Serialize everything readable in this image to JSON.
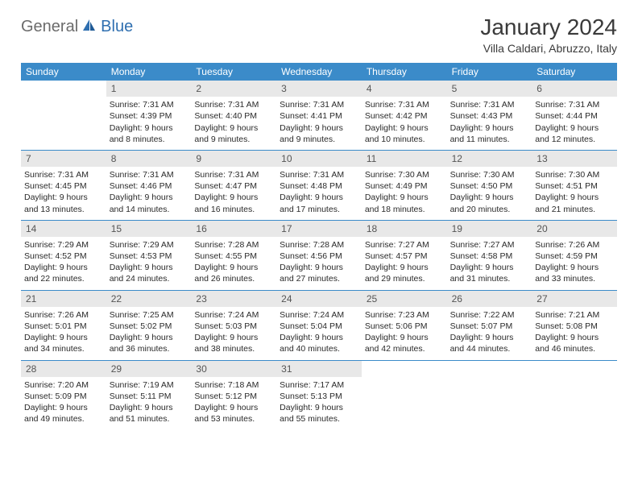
{
  "brand": {
    "part1": "General",
    "part2": "Blue"
  },
  "title": "January 2024",
  "location": "Villa Caldari, Abruzzo, Italy",
  "colors": {
    "header_bg": "#3b8bc9",
    "header_text": "#ffffff",
    "daynum_bg": "#e8e8e8",
    "rule": "#3b8bc9",
    "text": "#2a2a2a",
    "logo_gray": "#6b6b6b",
    "logo_blue": "#2f6fb0"
  },
  "day_names": [
    "Sunday",
    "Monday",
    "Tuesday",
    "Wednesday",
    "Thursday",
    "Friday",
    "Saturday"
  ],
  "weeks": [
    [
      {
        "empty": true
      },
      {
        "day": "1",
        "sunrise": "7:31 AM",
        "sunset": "4:39 PM",
        "daylight_a": "Daylight: 9 hours",
        "daylight_b": "and 8 minutes."
      },
      {
        "day": "2",
        "sunrise": "7:31 AM",
        "sunset": "4:40 PM",
        "daylight_a": "Daylight: 9 hours",
        "daylight_b": "and 9 minutes."
      },
      {
        "day": "3",
        "sunrise": "7:31 AM",
        "sunset": "4:41 PM",
        "daylight_a": "Daylight: 9 hours",
        "daylight_b": "and 9 minutes."
      },
      {
        "day": "4",
        "sunrise": "7:31 AM",
        "sunset": "4:42 PM",
        "daylight_a": "Daylight: 9 hours",
        "daylight_b": "and 10 minutes."
      },
      {
        "day": "5",
        "sunrise": "7:31 AM",
        "sunset": "4:43 PM",
        "daylight_a": "Daylight: 9 hours",
        "daylight_b": "and 11 minutes."
      },
      {
        "day": "6",
        "sunrise": "7:31 AM",
        "sunset": "4:44 PM",
        "daylight_a": "Daylight: 9 hours",
        "daylight_b": "and 12 minutes."
      }
    ],
    [
      {
        "day": "7",
        "sunrise": "7:31 AM",
        "sunset": "4:45 PM",
        "daylight_a": "Daylight: 9 hours",
        "daylight_b": "and 13 minutes."
      },
      {
        "day": "8",
        "sunrise": "7:31 AM",
        "sunset": "4:46 PM",
        "daylight_a": "Daylight: 9 hours",
        "daylight_b": "and 14 minutes."
      },
      {
        "day": "9",
        "sunrise": "7:31 AM",
        "sunset": "4:47 PM",
        "daylight_a": "Daylight: 9 hours",
        "daylight_b": "and 16 minutes."
      },
      {
        "day": "10",
        "sunrise": "7:31 AM",
        "sunset": "4:48 PM",
        "daylight_a": "Daylight: 9 hours",
        "daylight_b": "and 17 minutes."
      },
      {
        "day": "11",
        "sunrise": "7:30 AM",
        "sunset": "4:49 PM",
        "daylight_a": "Daylight: 9 hours",
        "daylight_b": "and 18 minutes."
      },
      {
        "day": "12",
        "sunrise": "7:30 AM",
        "sunset": "4:50 PM",
        "daylight_a": "Daylight: 9 hours",
        "daylight_b": "and 20 minutes."
      },
      {
        "day": "13",
        "sunrise": "7:30 AM",
        "sunset": "4:51 PM",
        "daylight_a": "Daylight: 9 hours",
        "daylight_b": "and 21 minutes."
      }
    ],
    [
      {
        "day": "14",
        "sunrise": "7:29 AM",
        "sunset": "4:52 PM",
        "daylight_a": "Daylight: 9 hours",
        "daylight_b": "and 22 minutes."
      },
      {
        "day": "15",
        "sunrise": "7:29 AM",
        "sunset": "4:53 PM",
        "daylight_a": "Daylight: 9 hours",
        "daylight_b": "and 24 minutes."
      },
      {
        "day": "16",
        "sunrise": "7:28 AM",
        "sunset": "4:55 PM",
        "daylight_a": "Daylight: 9 hours",
        "daylight_b": "and 26 minutes."
      },
      {
        "day": "17",
        "sunrise": "7:28 AM",
        "sunset": "4:56 PM",
        "daylight_a": "Daylight: 9 hours",
        "daylight_b": "and 27 minutes."
      },
      {
        "day": "18",
        "sunrise": "7:27 AM",
        "sunset": "4:57 PM",
        "daylight_a": "Daylight: 9 hours",
        "daylight_b": "and 29 minutes."
      },
      {
        "day": "19",
        "sunrise": "7:27 AM",
        "sunset": "4:58 PM",
        "daylight_a": "Daylight: 9 hours",
        "daylight_b": "and 31 minutes."
      },
      {
        "day": "20",
        "sunrise": "7:26 AM",
        "sunset": "4:59 PM",
        "daylight_a": "Daylight: 9 hours",
        "daylight_b": "and 33 minutes."
      }
    ],
    [
      {
        "day": "21",
        "sunrise": "7:26 AM",
        "sunset": "5:01 PM",
        "daylight_a": "Daylight: 9 hours",
        "daylight_b": "and 34 minutes."
      },
      {
        "day": "22",
        "sunrise": "7:25 AM",
        "sunset": "5:02 PM",
        "daylight_a": "Daylight: 9 hours",
        "daylight_b": "and 36 minutes."
      },
      {
        "day": "23",
        "sunrise": "7:24 AM",
        "sunset": "5:03 PM",
        "daylight_a": "Daylight: 9 hours",
        "daylight_b": "and 38 minutes."
      },
      {
        "day": "24",
        "sunrise": "7:24 AM",
        "sunset": "5:04 PM",
        "daylight_a": "Daylight: 9 hours",
        "daylight_b": "and 40 minutes."
      },
      {
        "day": "25",
        "sunrise": "7:23 AM",
        "sunset": "5:06 PM",
        "daylight_a": "Daylight: 9 hours",
        "daylight_b": "and 42 minutes."
      },
      {
        "day": "26",
        "sunrise": "7:22 AM",
        "sunset": "5:07 PM",
        "daylight_a": "Daylight: 9 hours",
        "daylight_b": "and 44 minutes."
      },
      {
        "day": "27",
        "sunrise": "7:21 AM",
        "sunset": "5:08 PM",
        "daylight_a": "Daylight: 9 hours",
        "daylight_b": "and 46 minutes."
      }
    ],
    [
      {
        "day": "28",
        "sunrise": "7:20 AM",
        "sunset": "5:09 PM",
        "daylight_a": "Daylight: 9 hours",
        "daylight_b": "and 49 minutes."
      },
      {
        "day": "29",
        "sunrise": "7:19 AM",
        "sunset": "5:11 PM",
        "daylight_a": "Daylight: 9 hours",
        "daylight_b": "and 51 minutes."
      },
      {
        "day": "30",
        "sunrise": "7:18 AM",
        "sunset": "5:12 PM",
        "daylight_a": "Daylight: 9 hours",
        "daylight_b": "and 53 minutes."
      },
      {
        "day": "31",
        "sunrise": "7:17 AM",
        "sunset": "5:13 PM",
        "daylight_a": "Daylight: 9 hours",
        "daylight_b": "and 55 minutes."
      },
      {
        "empty": true
      },
      {
        "empty": true
      },
      {
        "empty": true
      }
    ]
  ],
  "labels": {
    "sunrise": "Sunrise: ",
    "sunset": "Sunset: "
  }
}
